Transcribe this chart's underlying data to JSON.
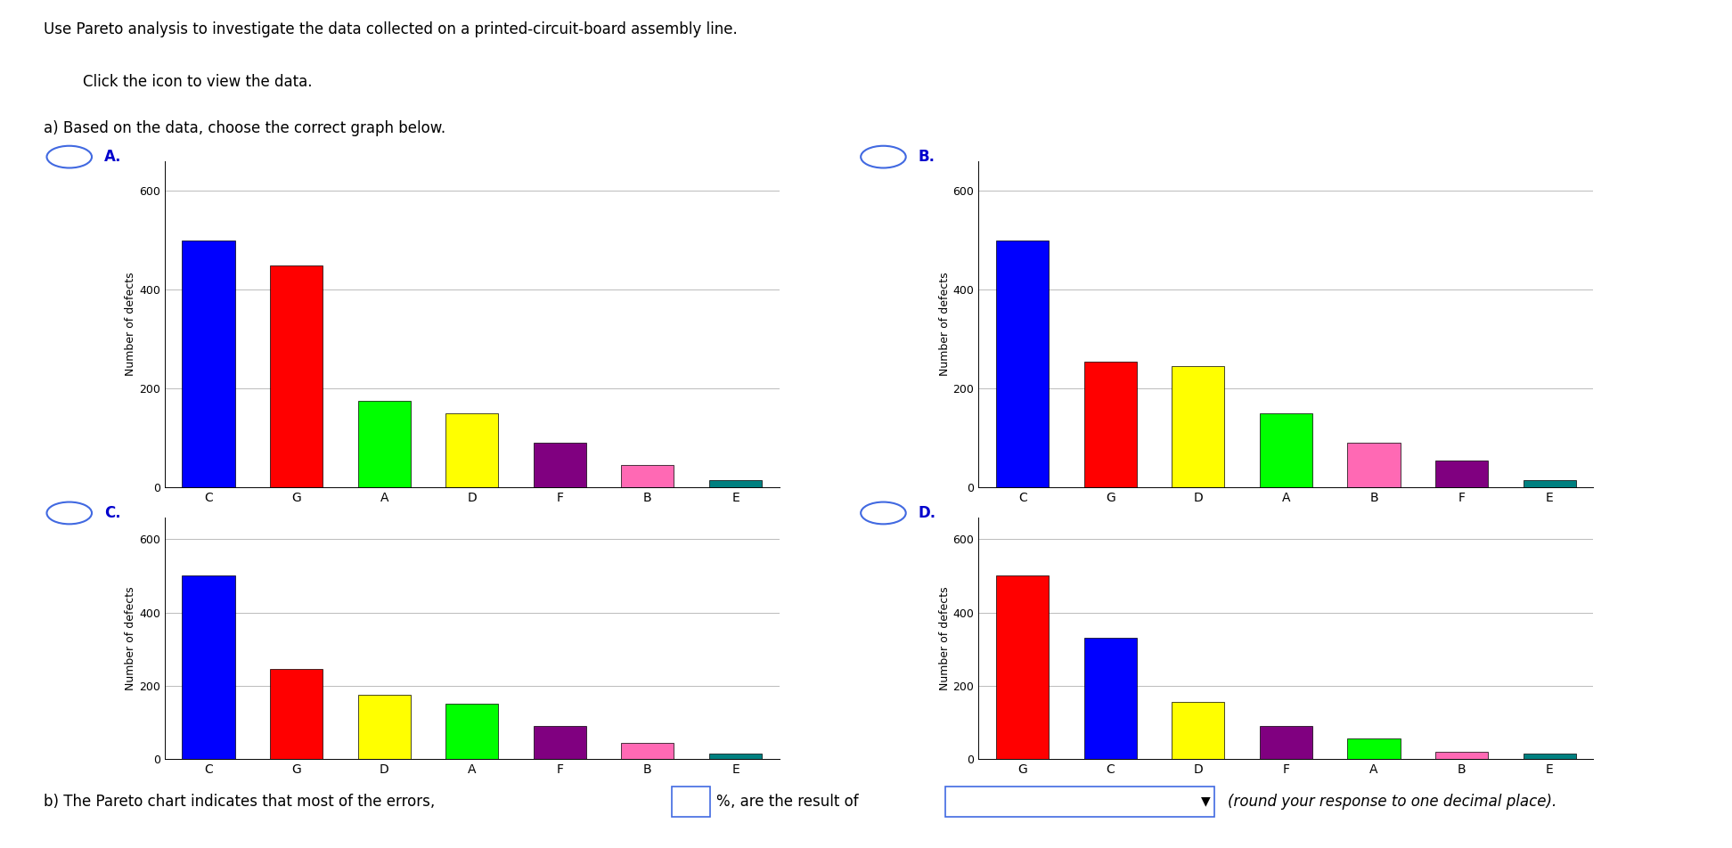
{
  "title": "Use Pareto analysis to investigate the data collected on a printed-circuit-board assembly line.",
  "subtitle1": "Click the icon to view the data.",
  "subtitle2": "a) Based on the data, choose the correct graph below.",
  "ylabel": "Number of defects",
  "ylim": [
    0,
    660
  ],
  "yticks": [
    0,
    200,
    400,
    600
  ],
  "bar_colors": {
    "C": "#0000FF",
    "G": "#FF0000",
    "A": "#00FF00",
    "D": "#FFFF00",
    "F": "#800080",
    "B": "#FF69B4",
    "E": "#008080"
  },
  "charts": {
    "A": {
      "categories": [
        "C",
        "G",
        "A",
        "D",
        "F",
        "B",
        "E"
      ],
      "values": [
        500,
        450,
        175,
        150,
        90,
        45,
        15
      ]
    },
    "B": {
      "categories": [
        "C",
        "G",
        "D",
        "A",
        "B",
        "F",
        "E"
      ],
      "values": [
        500,
        255,
        245,
        150,
        90,
        55,
        15
      ]
    },
    "C": {
      "categories": [
        "C",
        "G",
        "D",
        "A",
        "F",
        "B",
        "E"
      ],
      "values": [
        500,
        245,
        175,
        150,
        90,
        45,
        15
      ]
    },
    "D": {
      "categories": [
        "G",
        "C",
        "D",
        "F",
        "A",
        "B",
        "E"
      ],
      "values": [
        500,
        330,
        155,
        90,
        55,
        20,
        15
      ]
    }
  },
  "background_color": "#FFFFFF",
  "text_color": "#000000",
  "option_label_color": "#0000CD",
  "grid_color": "#BBBBBB",
  "circle_color": "#4169E1",
  "icon_color": "#5B9BD5",
  "part_b_text": "b) The Pareto chart indicates that most of the errors,",
  "part_b_pct": "%",
  "part_b_suffix": ", are the result of",
  "part_b_italic": "(round your response to one decimal place)."
}
